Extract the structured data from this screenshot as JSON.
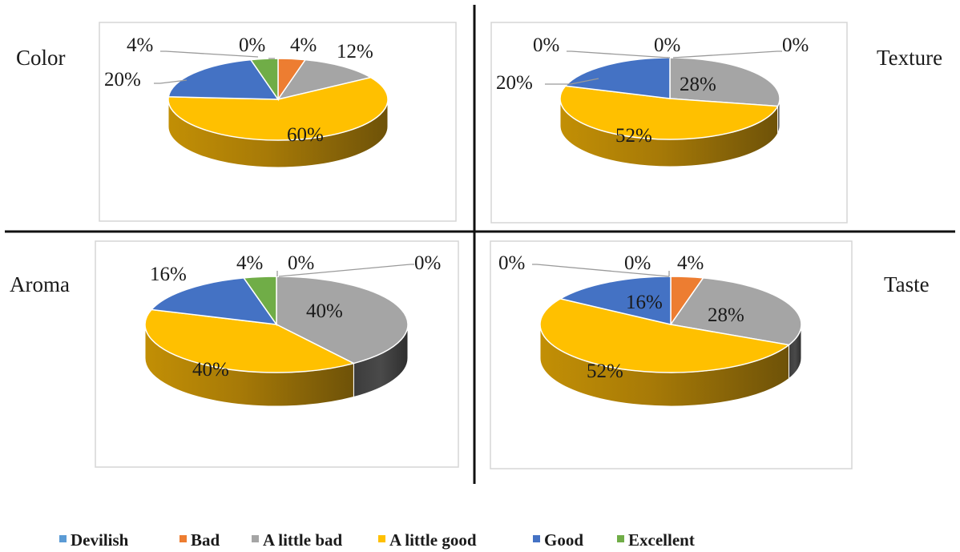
{
  "legend": [
    {
      "label": "Devilish",
      "color": "#5B9BD5"
    },
    {
      "label": "Bad",
      "color": "#ED7D31"
    },
    {
      "label": "A little bad",
      "color": "#A5A5A5"
    },
    {
      "label": "A little good",
      "color": "#FFC000"
    },
    {
      "label": "Good",
      "color": "#4472C4"
    },
    {
      "label": "Excellent",
      "color": "#70AD47"
    }
  ],
  "chart_data": [
    {
      "type": "pie",
      "category_label": "Color",
      "labels": [
        "Devilish",
        "Bad",
        "A little bad",
        "A little good",
        "Good",
        "Excellent"
      ],
      "values": [
        0,
        4,
        12,
        60,
        20,
        4
      ],
      "value_labels": [
        "0%",
        "4%",
        "12%",
        "60%",
        "20%",
        "4%"
      ]
    },
    {
      "type": "pie",
      "category_label": "Texture",
      "labels": [
        "Devilish",
        "Bad",
        "A little bad",
        "A little good",
        "Good",
        "Excellent"
      ],
      "values": [
        0,
        0,
        28,
        52,
        20,
        0
      ],
      "value_labels": [
        "0%",
        "0%",
        "28%",
        "52%",
        "20%",
        "0%"
      ]
    },
    {
      "type": "pie",
      "category_label": "Aroma",
      "labels": [
        "Devilish",
        "Bad",
        "A little bad",
        "A little good",
        "Good",
        "Excellent"
      ],
      "values": [
        0,
        0,
        40,
        40,
        16,
        4
      ],
      "value_labels": [
        "0%",
        "0%",
        "40%",
        "40%",
        "16%",
        "4%"
      ]
    },
    {
      "type": "pie",
      "category_label": "Taste",
      "labels": [
        "Devilish",
        "Bad",
        "A little bad",
        "A little good",
        "Good",
        "Excellent"
      ],
      "values": [
        0,
        4,
        28,
        52,
        16,
        0
      ],
      "value_labels": [
        "0%",
        "4%",
        "28%",
        "52%",
        "16%",
        "0%"
      ]
    }
  ]
}
